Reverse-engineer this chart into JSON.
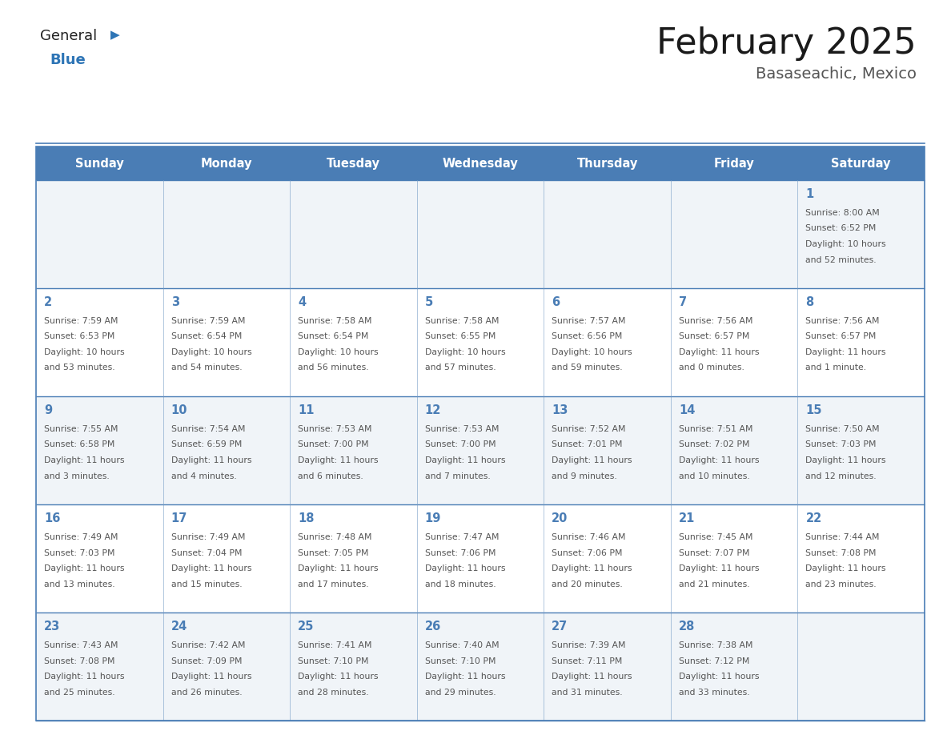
{
  "title": "February 2025",
  "subtitle": "Basaseachic, Mexico",
  "days_of_week": [
    "Sunday",
    "Monday",
    "Tuesday",
    "Wednesday",
    "Thursday",
    "Friday",
    "Saturday"
  ],
  "header_bg": "#4A7DB5",
  "header_text": "#FFFFFF",
  "cell_bg_odd": "#F0F4F8",
  "cell_bg_even": "#FFFFFF",
  "border_color": "#4A7DB5",
  "day_num_color": "#4A7DB5",
  "text_color": "#555555",
  "title_color": "#1a1a1a",
  "subtitle_color": "#555555",
  "logo_general_color": "#222222",
  "logo_blue_color": "#2E75B6",
  "calendar_data": [
    [
      null,
      null,
      null,
      null,
      null,
      null,
      {
        "day": "1",
        "sunrise": "Sunrise: 8:00 AM",
        "sunset": "Sunset: 6:52 PM",
        "daylight1": "Daylight: 10 hours",
        "daylight2": "and 52 minutes."
      }
    ],
    [
      {
        "day": "2",
        "sunrise": "Sunrise: 7:59 AM",
        "sunset": "Sunset: 6:53 PM",
        "daylight1": "Daylight: 10 hours",
        "daylight2": "and 53 minutes."
      },
      {
        "day": "3",
        "sunrise": "Sunrise: 7:59 AM",
        "sunset": "Sunset: 6:54 PM",
        "daylight1": "Daylight: 10 hours",
        "daylight2": "and 54 minutes."
      },
      {
        "day": "4",
        "sunrise": "Sunrise: 7:58 AM",
        "sunset": "Sunset: 6:54 PM",
        "daylight1": "Daylight: 10 hours",
        "daylight2": "and 56 minutes."
      },
      {
        "day": "5",
        "sunrise": "Sunrise: 7:58 AM",
        "sunset": "Sunset: 6:55 PM",
        "daylight1": "Daylight: 10 hours",
        "daylight2": "and 57 minutes."
      },
      {
        "day": "6",
        "sunrise": "Sunrise: 7:57 AM",
        "sunset": "Sunset: 6:56 PM",
        "daylight1": "Daylight: 10 hours",
        "daylight2": "and 59 minutes."
      },
      {
        "day": "7",
        "sunrise": "Sunrise: 7:56 AM",
        "sunset": "Sunset: 6:57 PM",
        "daylight1": "Daylight: 11 hours",
        "daylight2": "and 0 minutes."
      },
      {
        "day": "8",
        "sunrise": "Sunrise: 7:56 AM",
        "sunset": "Sunset: 6:57 PM",
        "daylight1": "Daylight: 11 hours",
        "daylight2": "and 1 minute."
      }
    ],
    [
      {
        "day": "9",
        "sunrise": "Sunrise: 7:55 AM",
        "sunset": "Sunset: 6:58 PM",
        "daylight1": "Daylight: 11 hours",
        "daylight2": "and 3 minutes."
      },
      {
        "day": "10",
        "sunrise": "Sunrise: 7:54 AM",
        "sunset": "Sunset: 6:59 PM",
        "daylight1": "Daylight: 11 hours",
        "daylight2": "and 4 minutes."
      },
      {
        "day": "11",
        "sunrise": "Sunrise: 7:53 AM",
        "sunset": "Sunset: 7:00 PM",
        "daylight1": "Daylight: 11 hours",
        "daylight2": "and 6 minutes."
      },
      {
        "day": "12",
        "sunrise": "Sunrise: 7:53 AM",
        "sunset": "Sunset: 7:00 PM",
        "daylight1": "Daylight: 11 hours",
        "daylight2": "and 7 minutes."
      },
      {
        "day": "13",
        "sunrise": "Sunrise: 7:52 AM",
        "sunset": "Sunset: 7:01 PM",
        "daylight1": "Daylight: 11 hours",
        "daylight2": "and 9 minutes."
      },
      {
        "day": "14",
        "sunrise": "Sunrise: 7:51 AM",
        "sunset": "Sunset: 7:02 PM",
        "daylight1": "Daylight: 11 hours",
        "daylight2": "and 10 minutes."
      },
      {
        "day": "15",
        "sunrise": "Sunrise: 7:50 AM",
        "sunset": "Sunset: 7:03 PM",
        "daylight1": "Daylight: 11 hours",
        "daylight2": "and 12 minutes."
      }
    ],
    [
      {
        "day": "16",
        "sunrise": "Sunrise: 7:49 AM",
        "sunset": "Sunset: 7:03 PM",
        "daylight1": "Daylight: 11 hours",
        "daylight2": "and 13 minutes."
      },
      {
        "day": "17",
        "sunrise": "Sunrise: 7:49 AM",
        "sunset": "Sunset: 7:04 PM",
        "daylight1": "Daylight: 11 hours",
        "daylight2": "and 15 minutes."
      },
      {
        "day": "18",
        "sunrise": "Sunrise: 7:48 AM",
        "sunset": "Sunset: 7:05 PM",
        "daylight1": "Daylight: 11 hours",
        "daylight2": "and 17 minutes."
      },
      {
        "day": "19",
        "sunrise": "Sunrise: 7:47 AM",
        "sunset": "Sunset: 7:06 PM",
        "daylight1": "Daylight: 11 hours",
        "daylight2": "and 18 minutes."
      },
      {
        "day": "20",
        "sunrise": "Sunrise: 7:46 AM",
        "sunset": "Sunset: 7:06 PM",
        "daylight1": "Daylight: 11 hours",
        "daylight2": "and 20 minutes."
      },
      {
        "day": "21",
        "sunrise": "Sunrise: 7:45 AM",
        "sunset": "Sunset: 7:07 PM",
        "daylight1": "Daylight: 11 hours",
        "daylight2": "and 21 minutes."
      },
      {
        "day": "22",
        "sunrise": "Sunrise: 7:44 AM",
        "sunset": "Sunset: 7:08 PM",
        "daylight1": "Daylight: 11 hours",
        "daylight2": "and 23 minutes."
      }
    ],
    [
      {
        "day": "23",
        "sunrise": "Sunrise: 7:43 AM",
        "sunset": "Sunset: 7:08 PM",
        "daylight1": "Daylight: 11 hours",
        "daylight2": "and 25 minutes."
      },
      {
        "day": "24",
        "sunrise": "Sunrise: 7:42 AM",
        "sunset": "Sunset: 7:09 PM",
        "daylight1": "Daylight: 11 hours",
        "daylight2": "and 26 minutes."
      },
      {
        "day": "25",
        "sunrise": "Sunrise: 7:41 AM",
        "sunset": "Sunset: 7:10 PM",
        "daylight1": "Daylight: 11 hours",
        "daylight2": "and 28 minutes."
      },
      {
        "day": "26",
        "sunrise": "Sunrise: 7:40 AM",
        "sunset": "Sunset: 7:10 PM",
        "daylight1": "Daylight: 11 hours",
        "daylight2": "and 29 minutes."
      },
      {
        "day": "27",
        "sunrise": "Sunrise: 7:39 AM",
        "sunset": "Sunset: 7:11 PM",
        "daylight1": "Daylight: 11 hours",
        "daylight2": "and 31 minutes."
      },
      {
        "day": "28",
        "sunrise": "Sunrise: 7:38 AM",
        "sunset": "Sunset: 7:12 PM",
        "daylight1": "Daylight: 11 hours",
        "daylight2": "and 33 minutes."
      },
      null
    ]
  ]
}
